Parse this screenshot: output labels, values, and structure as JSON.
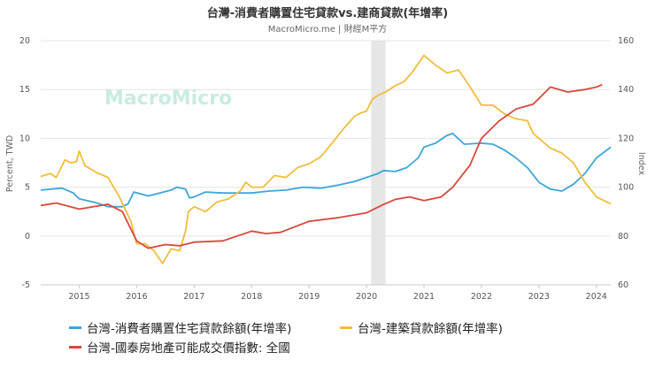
{
  "header": {
    "title": "台灣-消費者購置住宅貸款vs.建商貸款(年增率)",
    "source": "MacroMicro.me | 財經M平方"
  },
  "watermark": "MacroMicro",
  "colors": {
    "consumer": "#3da5d9",
    "construction": "#f0be3c",
    "index": "#d9483b",
    "shade": "#e6e6e6",
    "grid": "#e5e5e5"
  },
  "chart_data": {
    "type": "line",
    "title": "台灣-消費者購置住宅貸款vs.建商貸款(年增率)",
    "xlim": [
      2014.33,
      2024.25
    ],
    "x_ticks": [
      "2015",
      "2016",
      "2017",
      "2018",
      "2019",
      "2020",
      "2021",
      "2022",
      "2023",
      "2024"
    ],
    "left_axis": {
      "label": "Percent, TWD",
      "range": [
        -5,
        20
      ],
      "ticks": [
        "-5",
        "0",
        "5",
        "10",
        "15",
        "20"
      ]
    },
    "right_axis": {
      "label": "Index",
      "range": [
        60,
        160
      ],
      "ticks": [
        "60",
        "80",
        "100",
        "120",
        "140",
        "160"
      ]
    },
    "shaded_region": [
      2020.08,
      2020.33
    ],
    "grid": true,
    "legend_position": "bottom",
    "series": [
      {
        "key": "consumer",
        "name": "台灣-消費者購置住宅貸款餘額(年增率)",
        "axis": "left",
        "points": [
          [
            2014.33,
            4.7
          ],
          [
            2014.7,
            4.9
          ],
          [
            2014.9,
            4.4
          ],
          [
            2015.0,
            3.8
          ],
          [
            2015.3,
            3.4
          ],
          [
            2015.5,
            3.0
          ],
          [
            2015.75,
            3.0
          ],
          [
            2015.85,
            3.3
          ],
          [
            2015.95,
            4.5
          ],
          [
            2016.2,
            4.1
          ],
          [
            2016.4,
            4.4
          ],
          [
            2016.6,
            4.7
          ],
          [
            2016.7,
            5.0
          ],
          [
            2016.85,
            4.8
          ],
          [
            2016.92,
            3.9
          ],
          [
            2017.0,
            4.0
          ],
          [
            2017.2,
            4.5
          ],
          [
            2017.5,
            4.4
          ],
          [
            2017.8,
            4.4
          ],
          [
            2018.0,
            4.4
          ],
          [
            2018.3,
            4.6
          ],
          [
            2018.6,
            4.7
          ],
          [
            2018.9,
            5.0
          ],
          [
            2019.2,
            4.9
          ],
          [
            2019.5,
            5.2
          ],
          [
            2019.8,
            5.6
          ],
          [
            2020.0,
            6.0
          ],
          [
            2020.2,
            6.4
          ],
          [
            2020.3,
            6.7
          ],
          [
            2020.5,
            6.6
          ],
          [
            2020.7,
            7.0
          ],
          [
            2020.9,
            8.0
          ],
          [
            2021.0,
            9.1
          ],
          [
            2021.2,
            9.5
          ],
          [
            2021.4,
            10.3
          ],
          [
            2021.5,
            10.5
          ],
          [
            2021.7,
            9.4
          ],
          [
            2022.0,
            9.5
          ],
          [
            2022.2,
            9.4
          ],
          [
            2022.4,
            8.8
          ],
          [
            2022.6,
            8.0
          ],
          [
            2022.8,
            7.0
          ],
          [
            2023.0,
            5.5
          ],
          [
            2023.2,
            4.8
          ],
          [
            2023.4,
            4.6
          ],
          [
            2023.6,
            5.3
          ],
          [
            2023.8,
            6.4
          ],
          [
            2024.0,
            8.0
          ],
          [
            2024.25,
            9.1
          ]
        ]
      },
      {
        "key": "construction",
        "name": "台灣-建築貸款餘額(年增率)",
        "axis": "left",
        "points": [
          [
            2014.33,
            6.1
          ],
          [
            2014.5,
            6.4
          ],
          [
            2014.6,
            6.0
          ],
          [
            2014.75,
            7.8
          ],
          [
            2014.85,
            7.5
          ],
          [
            2014.95,
            7.6
          ],
          [
            2015.0,
            8.7
          ],
          [
            2015.1,
            7.2
          ],
          [
            2015.3,
            6.5
          ],
          [
            2015.5,
            6.0
          ],
          [
            2015.7,
            4.0
          ],
          [
            2015.9,
            1.5
          ],
          [
            2016.0,
            -0.8
          ],
          [
            2016.15,
            -0.8
          ],
          [
            2016.3,
            -1.5
          ],
          [
            2016.45,
            -2.8
          ],
          [
            2016.6,
            -1.3
          ],
          [
            2016.75,
            -1.5
          ],
          [
            2016.85,
            0.5
          ],
          [
            2016.9,
            2.5
          ],
          [
            2017.0,
            3.0
          ],
          [
            2017.2,
            2.5
          ],
          [
            2017.4,
            3.5
          ],
          [
            2017.6,
            3.8
          ],
          [
            2017.8,
            4.6
          ],
          [
            2017.9,
            5.5
          ],
          [
            2018.0,
            5.0
          ],
          [
            2018.2,
            5.0
          ],
          [
            2018.4,
            6.2
          ],
          [
            2018.6,
            6.0
          ],
          [
            2018.8,
            7.0
          ],
          [
            2019.0,
            7.4
          ],
          [
            2019.2,
            8.1
          ],
          [
            2019.4,
            9.5
          ],
          [
            2019.6,
            11.0
          ],
          [
            2019.8,
            12.3
          ],
          [
            2019.9,
            12.6
          ],
          [
            2020.0,
            12.8
          ],
          [
            2020.1,
            14.0
          ],
          [
            2020.2,
            14.4
          ],
          [
            2020.35,
            14.8
          ],
          [
            2020.5,
            15.4
          ],
          [
            2020.65,
            15.8
          ],
          [
            2020.8,
            16.8
          ],
          [
            2021.0,
            18.5
          ],
          [
            2021.2,
            17.5
          ],
          [
            2021.4,
            16.7
          ],
          [
            2021.6,
            17.0
          ],
          [
            2021.8,
            15.3
          ],
          [
            2022.0,
            13.4
          ],
          [
            2022.2,
            13.4
          ],
          [
            2022.4,
            12.5
          ],
          [
            2022.6,
            12.0
          ],
          [
            2022.8,
            11.8
          ],
          [
            2022.9,
            10.5
          ],
          [
            2023.0,
            10.0
          ],
          [
            2023.2,
            9.0
          ],
          [
            2023.4,
            8.5
          ],
          [
            2023.6,
            7.5
          ],
          [
            2023.8,
            5.5
          ],
          [
            2024.0,
            4.0
          ],
          [
            2024.25,
            3.3
          ]
        ]
      },
      {
        "key": "index",
        "name": "台灣-國泰房地產可能成交價指數: 全國",
        "axis": "right",
        "points": [
          [
            2014.33,
            92.5
          ],
          [
            2014.6,
            93.5
          ],
          [
            2015.0,
            91.0
          ],
          [
            2015.5,
            93.0
          ],
          [
            2015.75,
            90.0
          ],
          [
            2016.0,
            78.0
          ],
          [
            2016.2,
            75.0
          ],
          [
            2016.5,
            76.5
          ],
          [
            2016.75,
            76.0
          ],
          [
            2017.0,
            77.5
          ],
          [
            2017.5,
            78.0
          ],
          [
            2017.75,
            80.0
          ],
          [
            2018.0,
            82.0
          ],
          [
            2018.25,
            81.0
          ],
          [
            2018.5,
            81.5
          ],
          [
            2019.0,
            86.0
          ],
          [
            2019.5,
            87.5
          ],
          [
            2020.0,
            89.5
          ],
          [
            2020.3,
            93.0
          ],
          [
            2020.5,
            95.0
          ],
          [
            2020.75,
            96.0
          ],
          [
            2021.0,
            94.5
          ],
          [
            2021.3,
            96.0
          ],
          [
            2021.5,
            100.0
          ],
          [
            2021.8,
            109.0
          ],
          [
            2022.0,
            120.0
          ],
          [
            2022.3,
            127.0
          ],
          [
            2022.6,
            132.0
          ],
          [
            2022.9,
            134.0
          ],
          [
            2023.2,
            141.0
          ],
          [
            2023.5,
            139.0
          ],
          [
            2023.8,
            140.0
          ],
          [
            2024.0,
            141.0
          ],
          [
            2024.1,
            142.0
          ]
        ]
      }
    ]
  }
}
